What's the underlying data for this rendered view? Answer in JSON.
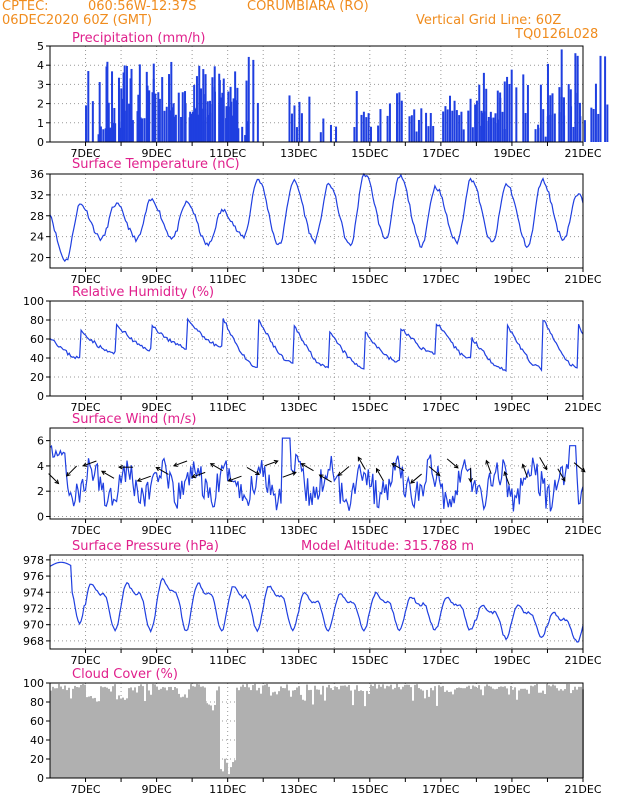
{
  "header": {
    "source": "CPTEC:",
    "location": "060:56W-12:37S",
    "place": "CORUMBIARA (RO)",
    "run": "06DEC2020 60Z (GMT)",
    "grid_note": "Vertical Grid Line: 60Z",
    "code": "TQ0126L028"
  },
  "colors": {
    "header": "#f08c1e",
    "title": "#e0208c",
    "series": "#1f3fe0",
    "cloud": "#b0b0b0",
    "grid": "#999999"
  },
  "x_axis": {
    "labels": [
      "7DEC",
      "9DEC",
      "11DEC",
      "13DEC",
      "15DEC",
      "17DEC",
      "19DEC",
      "21DEC"
    ]
  },
  "chart_data": [
    {
      "id": "precip",
      "type": "bar",
      "title": "Precipitation (mm/h)",
      "ylim": [
        0,
        5
      ],
      "yticks": [
        0,
        1,
        2,
        3,
        4,
        5
      ],
      "x_unit": "days since 06DEC 12Z",
      "events": [
        [
          1.6,
          1.2,
          1,
          0
        ],
        [
          1.75,
          4.4,
          1.6,
          0.4
        ],
        [
          2.05,
          3.0,
          0.35,
          1
        ],
        [
          2.3,
          4.3,
          1.5,
          2
        ],
        [
          2.85,
          3.5,
          0.35,
          3
        ],
        [
          3.4,
          4.3,
          1.6,
          4
        ],
        [
          3.8,
          4.4,
          1.8,
          5
        ],
        [
          4.2,
          3.6,
          0.5,
          6
        ],
        [
          4.4,
          3.6,
          0.9,
          7
        ],
        [
          4.8,
          2.7,
          1.0,
          8
        ],
        [
          5.05,
          4.8,
          1.6,
          9
        ],
        [
          5.45,
          1.2,
          0.25,
          10
        ],
        [
          6.95,
          2.6,
          0.7,
          11
        ],
        [
          7.8,
          1.3,
          0.5,
          12
        ],
        [
          9.2,
          3.0,
          1.4,
          13
        ],
        [
          9.8,
          1.1,
          0.35,
          14
        ],
        [
          10.45,
          1.8,
          0.8,
          15
        ],
        [
          11.9,
          2.6,
          1.8,
          16
        ],
        [
          12.7,
          4.5,
          1.5,
          17
        ],
        [
          13.7,
          1.1,
          0.5,
          18
        ],
        [
          14.5,
          3.1,
          1.5,
          19
        ],
        [
          14.85,
          4.9,
          1.8,
          20
        ]
      ]
    },
    {
      "id": "temp",
      "type": "line",
      "title": "Surface Temperature (nC)",
      "ylim": [
        18,
        36
      ],
      "yticks": [
        20,
        24,
        28,
        32,
        36
      ],
      "daily": {
        "min_temp": [
          19.5,
          23.6,
          23.5,
          23.8,
          22.4,
          24,
          22.4,
          23.2,
          22.3,
          23.7,
          22.4,
          23,
          22.8,
          22.2,
          23.6,
          24.2
        ],
        "max_temp": [
          30.2,
          30.2,
          31,
          30.5,
          29,
          35,
          34.6,
          34,
          36,
          35.5,
          33.5,
          35,
          34,
          34.8,
          32,
          29
        ]
      }
    },
    {
      "id": "rh",
      "type": "line",
      "title": "Relative Humidity (%)",
      "ylim": [
        0,
        100
      ],
      "yticks": [
        0,
        20,
        40,
        60,
        80,
        100
      ],
      "daily": {
        "min_rh": [
          40,
          45,
          49,
          51,
          52,
          30,
          34,
          29,
          30,
          36,
          45,
          40,
          28,
          29,
          30,
          41
        ],
        "max_rh": [
          75,
          82,
          80,
          88,
          95,
          92,
          86,
          77,
          75,
          79,
          88,
          70,
          87,
          95,
          87,
          80
        ]
      }
    },
    {
      "id": "wind",
      "type": "line",
      "title": "Surface Wind (m/s)",
      "ylim": [
        -0.2,
        7
      ],
      "yticks": [
        0,
        2,
        4,
        6
      ],
      "arrow_directions_deg": [
        315,
        225,
        200,
        150,
        180,
        200,
        150,
        200,
        200,
        150,
        200,
        330,
        20,
        20,
        150,
        150,
        220,
        120,
        120,
        150,
        220,
        320,
        320,
        270,
        110,
        110,
        110,
        300,
        300,
        320
      ]
    },
    {
      "id": "pres",
      "type": "line",
      "title": "Surface Pressure (hPa)",
      "subtitle": "Model Altitude: 315.788 m",
      "ylim": [
        967,
        978.6
      ],
      "yticks": [
        968,
        970,
        972,
        974,
        976,
        978
      ],
      "daily": {
        "min_pres": [
          970.5,
          969.5,
          969.5,
          969.5,
          969.5,
          969.5,
          969.5,
          969.5,
          969.5,
          969.5,
          969.5,
          969.5,
          968.5,
          968.5,
          968,
          967.5
        ],
        "max_pres": [
          977.8,
          976,
          976,
          976.5,
          976,
          975.5,
          975.5,
          974.5,
          974.5,
          974.5,
          974,
          974,
          973,
          973,
          972,
          971
        ]
      }
    },
    {
      "id": "cloud",
      "type": "area",
      "title": "Cloud Cover (%)",
      "ylim": [
        0,
        100
      ],
      "yticks": [
        0,
        20,
        40,
        60,
        80,
        100
      ],
      "dips": [
        [
          5.0,
          0,
          0.45
        ],
        [
          4.95,
          40,
          0.3
        ],
        [
          4.5,
          70,
          0.3
        ],
        [
          1.2,
          80,
          0.4
        ],
        [
          2.0,
          82,
          0.3
        ],
        [
          3.7,
          84,
          0.3
        ],
        [
          6.3,
          88,
          0.3
        ],
        [
          8.8,
          90,
          0.3
        ],
        [
          11.2,
          88,
          0.3
        ],
        [
          13.8,
          88,
          0.3
        ]
      ]
    }
  ]
}
